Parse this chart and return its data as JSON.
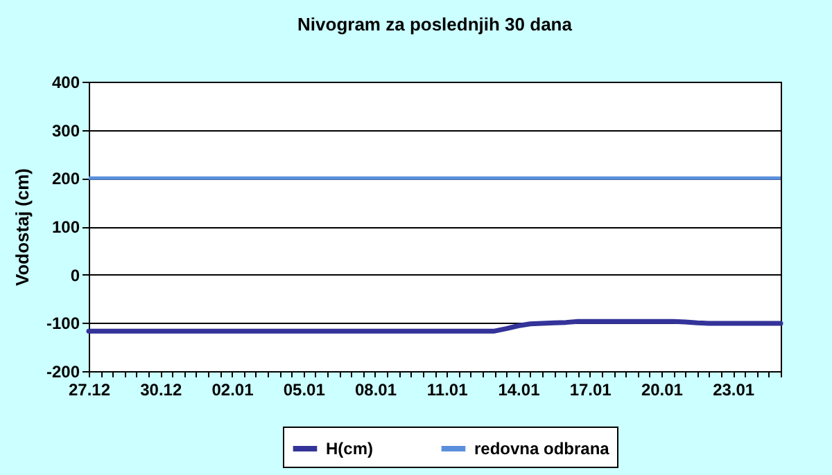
{
  "chart_data": {
    "type": "line",
    "title": "Nivogram za poslednjih 30 dana",
    "ylabel": "Vodostaj (cm)",
    "categories": [
      "27.12",
      null,
      null,
      null,
      null,
      null,
      "30.12",
      null,
      null,
      null,
      null,
      null,
      "02.01",
      null,
      null,
      null,
      null,
      null,
      "05.01",
      null,
      null,
      null,
      null,
      null,
      "08.01",
      null,
      null,
      null,
      null,
      null,
      "11.01",
      null,
      null,
      null,
      null,
      null,
      "14.01",
      null,
      null,
      null,
      null,
      null,
      "17.01",
      null,
      null,
      null,
      null,
      null,
      "20.01",
      null,
      null,
      null,
      null,
      null,
      "23.01",
      null,
      null,
      null,
      null
    ],
    "series": [
      {
        "name": "H(cm)",
        "color": "#333399",
        "values": [
          -117,
          -117,
          -117,
          -117,
          -117,
          -117,
          -117,
          -117,
          -117,
          -117,
          -117,
          -117,
          -117,
          -117,
          -117,
          -117,
          -117,
          -117,
          -117,
          -117,
          -117,
          -117,
          -117,
          -117,
          -117,
          -117,
          -117,
          -117,
          -117,
          -117,
          -117,
          -117,
          -117,
          -117,
          -117,
          -112,
          -106,
          -102,
          -101,
          -100,
          -99,
          -97,
          -97,
          -97,
          -97,
          -97,
          -97,
          -97,
          -97,
          -97,
          -98,
          -100,
          -101,
          -101,
          -101,
          -101,
          -101,
          -101,
          -101
        ]
      }
    ],
    "ref_lines": [
      {
        "axis": "y",
        "value": 200,
        "label": "redovna odbrana",
        "color": "#5b8fdc"
      }
    ],
    "ylim": [
      -200,
      400
    ],
    "yticks": [
      -200,
      -100,
      0,
      100,
      200,
      300,
      400
    ],
    "grid": "y",
    "legend": "bottom"
  }
}
